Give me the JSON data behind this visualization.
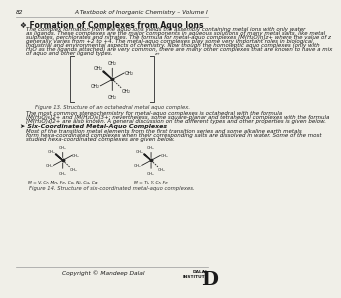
{
  "page_number": "82",
  "header_right": "A Textbook of Inorganic Chemistry – Volume I",
  "section_title": "❖ Formation of Complexes from Aquo Ions",
  "body_text1_lines": [
    "The complex formation from the aquo ions yields the assembly containing metal ions with only water",
    "as ligands. These complexes are the major components in aqueous solutions of many metal salts, like metal",
    "sulphates, perchlorates and nitrates. The formula for metal-aquo complexes [M(H₂O)n]z+ where the value of z",
    "generally varies from +2 to +4. The metal-aquo complexes play some very important roles in biological,",
    "industrial and environmental aspects of chemistry. Now though the homoleptic aquo complexes (only with",
    "H₂O as the ligands attached) are very common, there are many other complexes that are known to have a mix",
    "of aquo and other ligand types."
  ],
  "fig13_caption": "Figure 13. Structure of an octahedral metal aquo complex.",
  "body_text2_lines": [
    "The most common stereochemistry for metal-aquo complexes is octahedral with the formula",
    "[M(H₂O)₆]2+ and [M(H₂O)₆]3+; nevertheless, some square-planar and tetrahedral complexes with the formula",
    "[M(H₂O)₄]2+ are also known. A general discussion on the different types and other properties is given below."
  ],
  "subsection_title": "➤ Six-Coordinated Metal-Aquo Complexes",
  "body_text3_lines": [
    "Most of the transition metal elements from the first transition series and some alkaline earth metals",
    "form hexa-coordinated complexes when their corresponding salts are dissolved in water. Some of the most",
    "studied hexa-coordinated complexes are given below."
  ],
  "fig14_caption": "Figure 14. Structure of six-coordinated metal-aquo complexes.",
  "metal_label1": "M = V, Cr, Mn, Fe, Co, Ni, Cu, Ca",
  "metal_label2": "M = Ti, Y, Cr, Fe",
  "copyright": "Copyright © Mandeep Dalal",
  "background": "#f0efe8",
  "text_color": "#1a1a1a",
  "fig_text_color": "#333333"
}
